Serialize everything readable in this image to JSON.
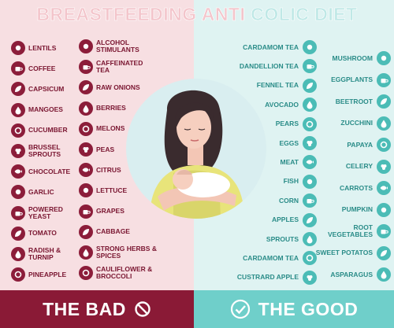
{
  "title_left": "BREASTFEEDING ANTI",
  "title_right": " COLIC DIET",
  "bad_col1": [
    {
      "label": "LENTILS",
      "icon": "lentils-icon"
    },
    {
      "label": "COFFEE",
      "icon": "coffee-icon"
    },
    {
      "label": "CAPSICUM",
      "icon": "capsicum-icon"
    },
    {
      "label": "MANGOES",
      "icon": "mango-icon"
    },
    {
      "label": "CUCUMBER",
      "icon": "cucumber-icon"
    },
    {
      "label": "BRUSSEL SPROUTS",
      "icon": "brussel-sprouts-icon"
    },
    {
      "label": "CHOCOLATE",
      "icon": "chocolate-icon"
    },
    {
      "label": "GARLIC",
      "icon": "garlic-icon"
    },
    {
      "label": "POWERED YEAST",
      "icon": "yeast-icon"
    },
    {
      "label": "TOMATO",
      "icon": "tomato-icon"
    },
    {
      "label": "RADISH & TURNIP",
      "icon": "radish-icon"
    },
    {
      "label": "PINEAPPLE",
      "icon": "pineapple-icon"
    }
  ],
  "bad_col2": [
    {
      "label": "ALCOHOL STIMULANTS",
      "icon": "alcohol-icon"
    },
    {
      "label": "CAFFEINATED TEA",
      "icon": "tea-icon"
    },
    {
      "label": "RAW ONIONS",
      "icon": "onion-icon"
    },
    {
      "label": "BERRIES",
      "icon": "berries-icon"
    },
    {
      "label": "MELONS",
      "icon": "melon-icon"
    },
    {
      "label": "PEAS",
      "icon": "peas-icon"
    },
    {
      "label": "CITRUS",
      "icon": "citrus-icon"
    },
    {
      "label": "LETTUCE",
      "icon": "lettuce-icon"
    },
    {
      "label": "GRAPES",
      "icon": "grapes-icon"
    },
    {
      "label": "CABBAGE",
      "icon": "cabbage-icon"
    },
    {
      "label": "STRONG HERBS & SPICES",
      "icon": "herbs-icon"
    },
    {
      "label": "CAULIFLOWER & BROCCOLI",
      "icon": "broccoli-icon"
    }
  ],
  "good_col1": [
    {
      "label": "CARDAMOM TEA",
      "icon": "cardamom-tea-icon"
    },
    {
      "label": "DANDELLION TEA",
      "icon": "dandelion-tea-icon"
    },
    {
      "label": "FENNEL TEA",
      "icon": "fennel-tea-icon"
    },
    {
      "label": "AVOCADO",
      "icon": "avocado-icon"
    },
    {
      "label": "PEARS",
      "icon": "pear-icon"
    },
    {
      "label": "EGGS",
      "icon": "egg-icon"
    },
    {
      "label": "MEAT",
      "icon": "meat-icon"
    },
    {
      "label": "FISH",
      "icon": "fish-icon"
    },
    {
      "label": "CORN",
      "icon": "corn-icon"
    },
    {
      "label": "APPLES",
      "icon": "apple-icon"
    },
    {
      "label": "SPROUTS",
      "icon": "sprouts-icon"
    },
    {
      "label": "CARDAMOM TEA",
      "icon": "cardamom-tea-icon"
    },
    {
      "label": "CUSTRARD APPLE",
      "icon": "custard-apple-icon"
    }
  ],
  "good_col2": [
    {
      "label": "MUSHROOM",
      "icon": "mushroom-icon"
    },
    {
      "label": "EGGPLANTS",
      "icon": "eggplant-icon"
    },
    {
      "label": "BEETROOT",
      "icon": "beetroot-icon"
    },
    {
      "label": "ZUCCHINI",
      "icon": "zucchini-icon"
    },
    {
      "label": "PAPAYA",
      "icon": "papaya-icon"
    },
    {
      "label": "CELERY",
      "icon": "celery-icon"
    },
    {
      "label": "CARROTS",
      "icon": "carrot-icon"
    },
    {
      "label": "PUMPKIN",
      "icon": "pumpkin-icon"
    },
    {
      "label": "ROOT VEGETABLES",
      "icon": "root-vegetables-icon"
    },
    {
      "label": "SWEET POTATOS",
      "icon": "sweet-potato-icon"
    },
    {
      "label": "ASPARAGUS",
      "icon": "asparagus-icon"
    }
  ],
  "bottom_bad": "THE BAD",
  "bottom_good": "THE GOOD",
  "stock_id": "242905564",
  "colors": {
    "bad": "#8c1d3a",
    "good": "#4bbcb6",
    "bad_bg": "#f7dfe2",
    "good_bg": "#dff3f2"
  }
}
